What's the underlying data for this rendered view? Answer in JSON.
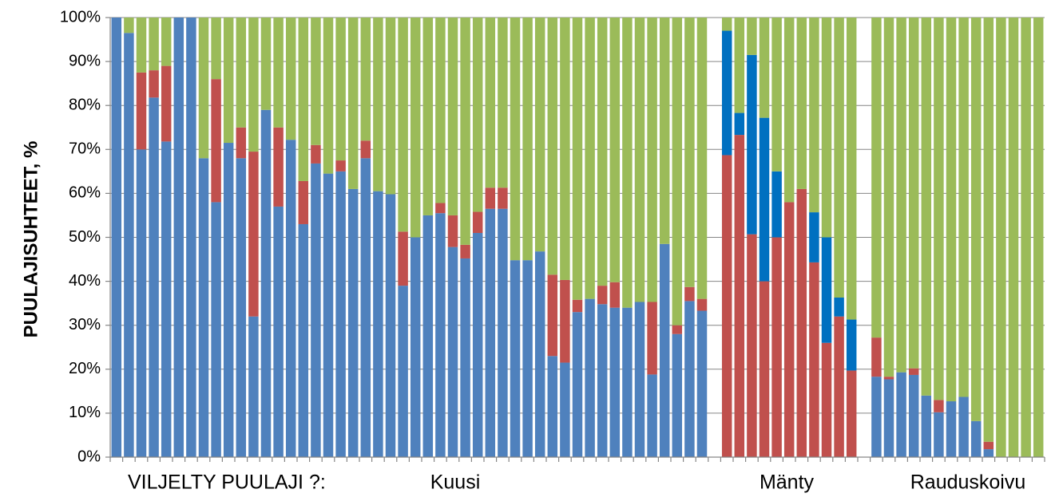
{
  "chart_data": {
    "type": "stacked_bar",
    "y_axis_label": "PUULAJISUHTEET, %",
    "annotations": [
      "VILJELTY PUULAJI ?:",
      "Kuusi",
      "Mänty",
      "Rauduskoivu"
    ],
    "categories": [
      null,
      null,
      null,
      null,
      null,
      null,
      null,
      null,
      null,
      null,
      null,
      null,
      null,
      null,
      null,
      null,
      null,
      null,
      null,
      null,
      null,
      null,
      null,
      null,
      null,
      null,
      null,
      null,
      null,
      null,
      null,
      null,
      null,
      null,
      null,
      null,
      null,
      null,
      null,
      null,
      null,
      null,
      null,
      null,
      null,
      null,
      null,
      null,
      null,
      null,
      null,
      null,
      null,
      null,
      null,
      null,
      null,
      null,
      null,
      null,
      null,
      null,
      null,
      null,
      null,
      null,
      null,
      null,
      null,
      null,
      null,
      null,
      null,
      null,
      null
    ],
    "series": [
      {
        "color": "#4f81bd",
        "values": [
          100,
          96.5,
          70,
          81.8,
          71.8,
          100,
          100,
          68,
          58,
          71.5,
          68,
          32,
          79,
          57,
          72.2,
          53,
          66.8,
          64.5,
          65,
          61,
          68,
          60.5,
          59.8,
          39,
          50,
          55,
          55.5,
          47.8,
          45.2,
          51,
          56.5,
          56.5,
          44.8,
          44.8,
          46.8,
          23,
          21.5,
          33,
          36,
          34.8,
          34,
          34,
          35.3,
          18.8,
          48.5,
          28,
          35.5,
          33.3,
          null,
          null,
          null,
          null,
          null,
          null,
          null,
          null,
          null,
          null,
          null,
          null,
          null,
          18.3,
          17.7,
          19.3,
          18.7,
          14,
          10.2,
          12.7,
          13.7,
          8.2,
          1.8,
          null,
          null,
          null,
          null
        ]
      },
      {
        "color": "#c0504d",
        "values": [
          null,
          null,
          17.5,
          6.2,
          17.2,
          null,
          null,
          null,
          28,
          null,
          7,
          37.5,
          null,
          18,
          null,
          9.8,
          4.2,
          null,
          2.5,
          null,
          4,
          null,
          null,
          12.3,
          null,
          null,
          2.3,
          7.2,
          3.1,
          4.8,
          4.8,
          4.8,
          null,
          null,
          null,
          18.5,
          18.8,
          2.8,
          null,
          4.2,
          5.8,
          null,
          null,
          16.5,
          null,
          2,
          3.2,
          2.7,
          null,
          68.7,
          73.3,
          50.7,
          40,
          50,
          58,
          61,
          44.3,
          26,
          32,
          19.7,
          null,
          8.9,
          0.6,
          null,
          1.5,
          null,
          2.8,
          null,
          null,
          null,
          1.7,
          null,
          null,
          null,
          null
        ]
      },
      {
        "color": "#0070c0",
        "values": [
          null,
          null,
          null,
          null,
          null,
          null,
          null,
          null,
          null,
          null,
          null,
          null,
          null,
          null,
          null,
          null,
          null,
          null,
          null,
          null,
          null,
          null,
          null,
          null,
          null,
          null,
          null,
          null,
          null,
          null,
          null,
          null,
          null,
          null,
          null,
          null,
          null,
          null,
          null,
          null,
          null,
          null,
          null,
          null,
          null,
          null,
          null,
          null,
          null,
          28.3,
          5,
          40.8,
          37.2,
          15,
          null,
          null,
          11.4,
          24,
          4.3,
          11.6,
          null,
          null,
          null,
          null,
          null,
          null,
          null,
          null,
          null,
          null,
          null,
          null,
          null,
          null,
          null
        ]
      },
      {
        "color": "#9bbb59",
        "values": [
          null,
          3.5,
          12.5,
          12,
          11,
          null,
          null,
          32,
          14,
          28.5,
          25,
          30.5,
          21,
          25,
          27.8,
          37.2,
          29,
          35.5,
          32.5,
          39,
          28,
          39.5,
          40.2,
          48.7,
          50,
          45,
          42.2,
          45,
          51.7,
          44.2,
          38.7,
          38.7,
          55.2,
          55.2,
          53.2,
          58.5,
          59.7,
          64.2,
          64,
          61,
          60.2,
          66,
          64.7,
          64.7,
          51.5,
          70,
          61.3,
          64,
          null,
          3,
          21.7,
          8.5,
          22.8,
          35,
          42,
          39,
          44.3,
          50,
          63.7,
          68.7,
          null,
          72.8,
          81.7,
          80.7,
          79.8,
          86,
          87,
          87.3,
          86.3,
          91.8,
          96.5,
          100,
          100,
          100,
          100
        ]
      }
    ],
    "ylim": [
      0,
      100
    ],
    "yticks": [
      {
        "value": 0,
        "label": "0%"
      },
      {
        "value": 10,
        "label": "10%"
      },
      {
        "value": 20,
        "label": "20%"
      },
      {
        "value": 30,
        "label": "30%"
      },
      {
        "value": 40,
        "label": "40%"
      },
      {
        "value": 50,
        "label": "50%"
      },
      {
        "value": 60,
        "label": "60%"
      },
      {
        "value": 70,
        "label": "70%"
      },
      {
        "value": 80,
        "label": "80%"
      },
      {
        "value": 90,
        "label": "90%"
      },
      {
        "value": 100,
        "label": "100%"
      }
    ],
    "grid": true
  }
}
